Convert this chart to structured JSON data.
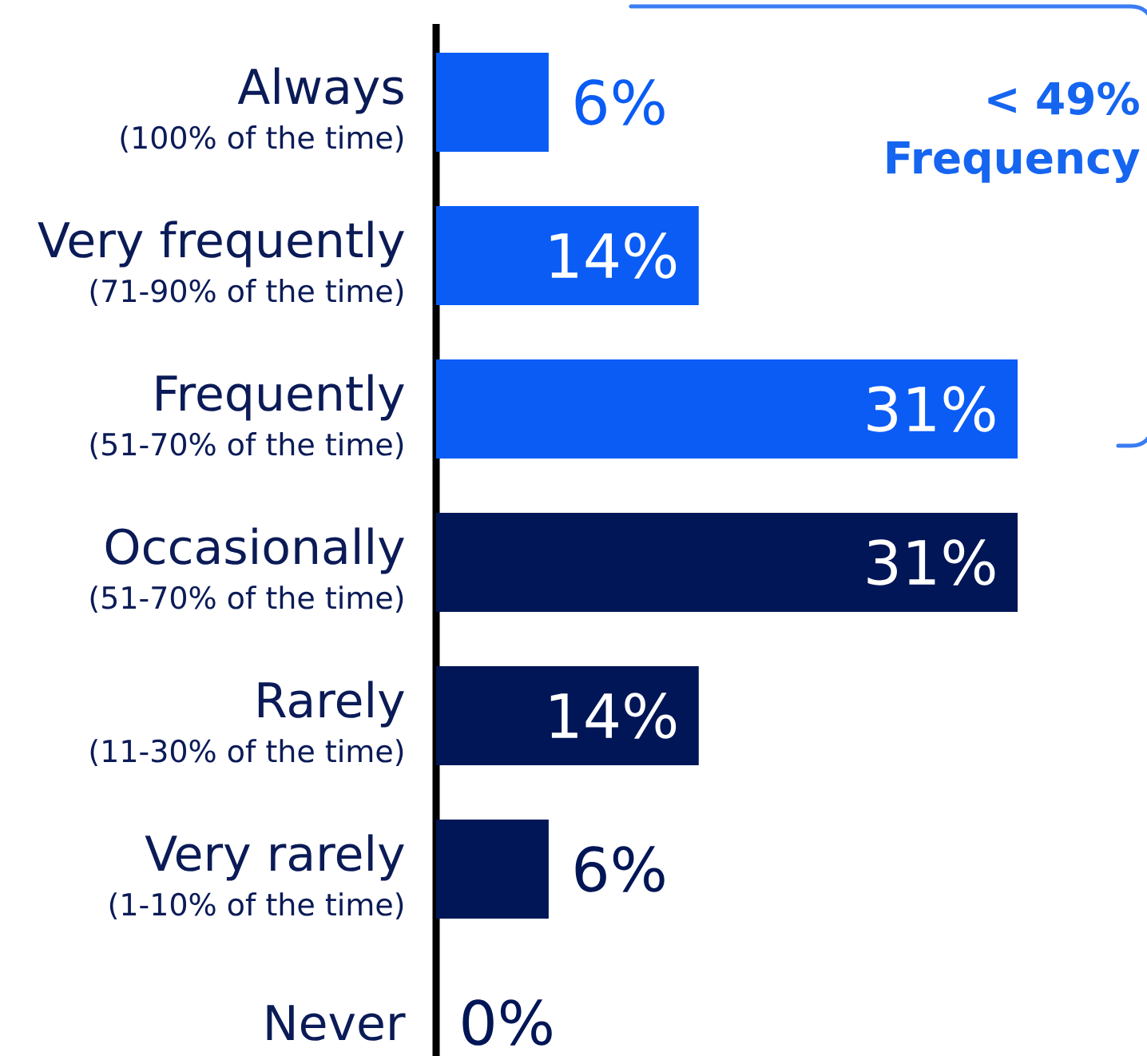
{
  "chart_data": {
    "type": "bar",
    "orientation": "horizontal",
    "categories": [
      "Always",
      "Very frequently",
      "Frequently",
      "Occasionally",
      "Rarely",
      "Very rarely",
      "Never"
    ],
    "values": [
      6,
      14,
      31,
      31,
      14,
      6,
      0
    ],
    "colors": [
      "#0a5cf5",
      "#0a5cf5",
      "#0a5cf5",
      "#001656",
      "#001656",
      "#001656",
      "#001656"
    ],
    "value_labels": [
      "6%",
      "14%",
      "31%",
      "31%",
      "14%",
      "6%",
      "0%"
    ],
    "tick_labels": "y",
    "annotations": [
      "(100% of the time)",
      "(71-90% of the time)",
      "(51-70% of the time)",
      "(51-70% of the time)",
      "(11-30% of the time)",
      "(1-10% of the time)",
      "< 49% Frequency"
    ]
  }
}
